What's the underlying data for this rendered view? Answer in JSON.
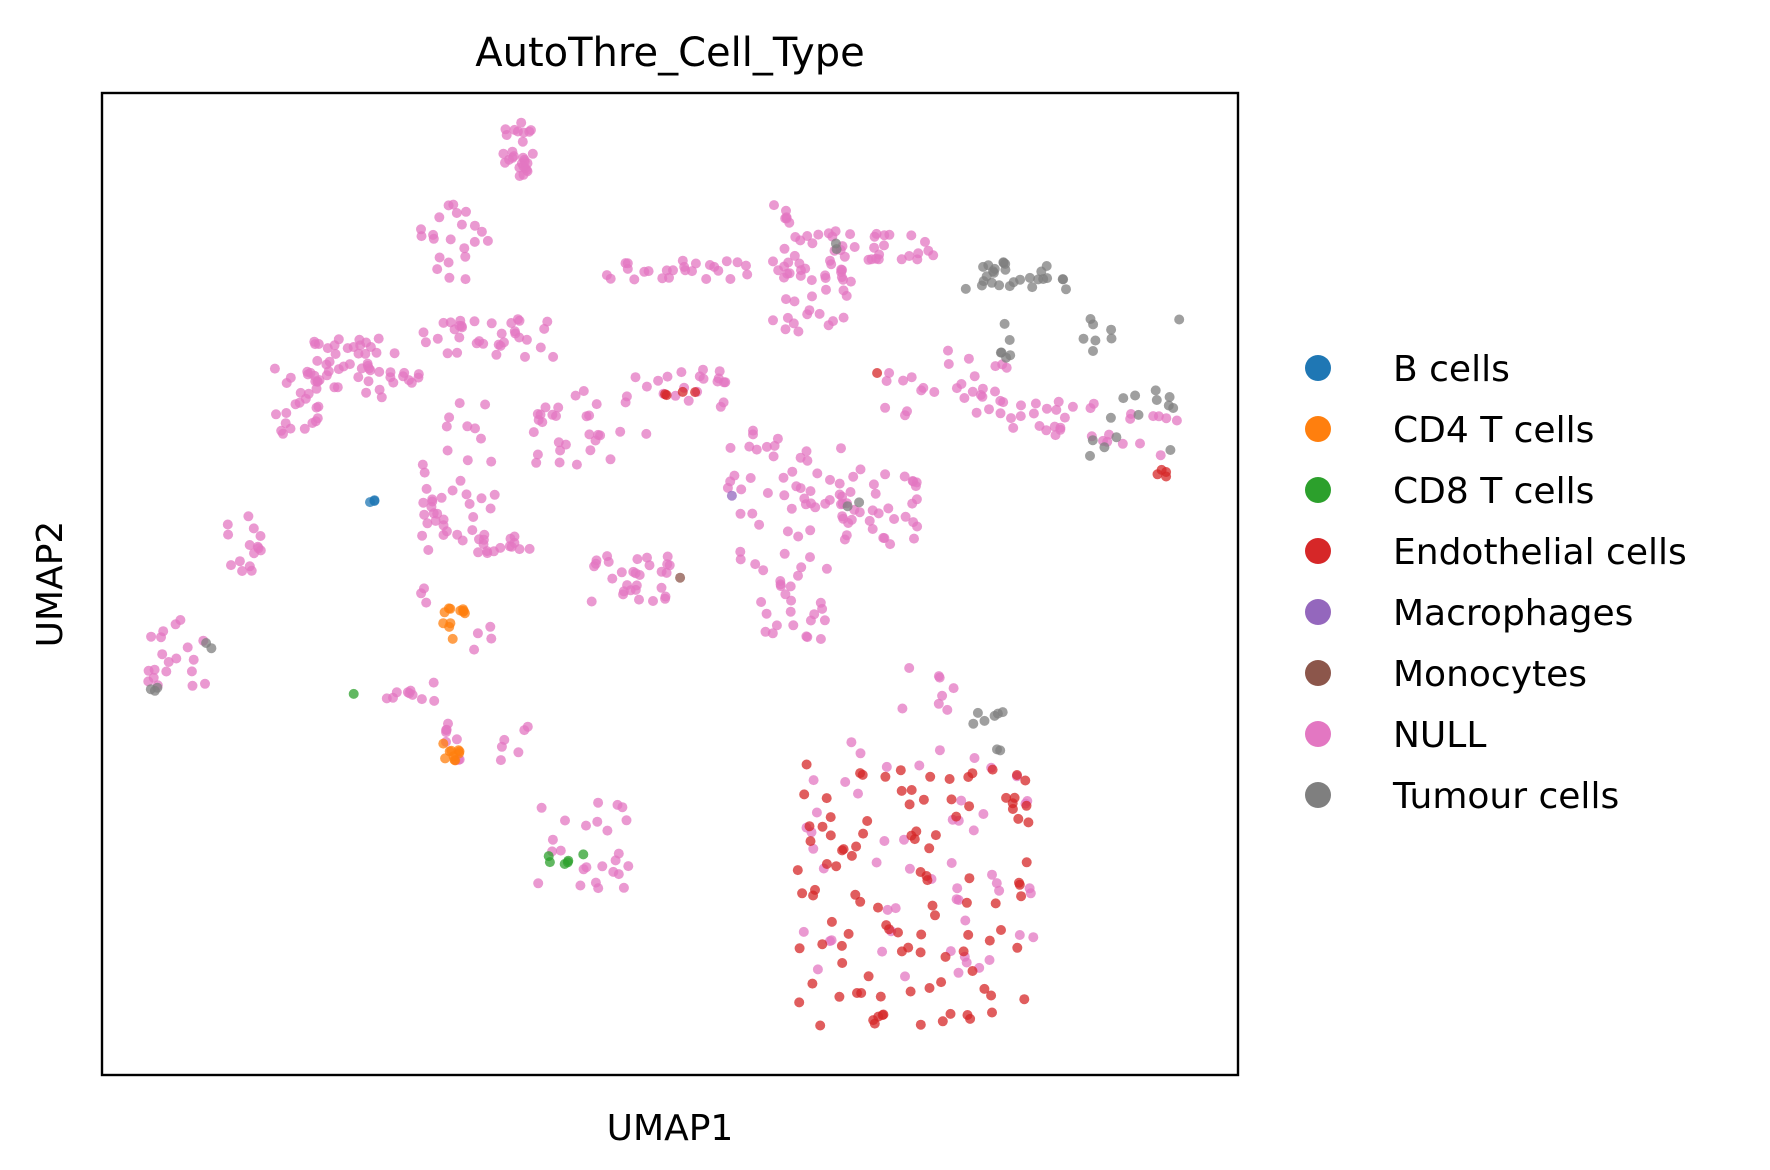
{
  "chart_data": {
    "type": "scatter",
    "title": "AutoThre_Cell_Type",
    "xlabel": "UMAP1",
    "ylabel": "UMAP2",
    "xlim": [
      0,
      100
    ],
    "ylim": [
      0,
      100
    ],
    "grid": false,
    "axis_ticks": false,
    "legend_position": "right",
    "point_alpha": 0.75,
    "categories": [
      {
        "name": "B cells",
        "color": "#1f77b4"
      },
      {
        "name": "CD4 T cells",
        "color": "#ff7f0e"
      },
      {
        "name": "CD8 T cells",
        "color": "#2ca02c"
      },
      {
        "name": "Endothelial cells",
        "color": "#d62728"
      },
      {
        "name": "Macrophages",
        "color": "#9467bd"
      },
      {
        "name": "Monocytes",
        "color": "#8c564b"
      },
      {
        "name": "NULL",
        "color": "#e377c2"
      },
      {
        "name": "Tumour cells",
        "color": "#7f7f7f"
      }
    ],
    "clusters": [
      {
        "category": "NULL",
        "n": 28,
        "x": [
          35,
          38
        ],
        "y": [
          91,
          97
        ]
      },
      {
        "category": "NULL",
        "n": 22,
        "x": [
          28,
          34
        ],
        "y": [
          81,
          89
        ]
      },
      {
        "category": "NULL",
        "n": 40,
        "x": [
          18,
          26
        ],
        "y": [
          70,
          75
        ]
      },
      {
        "category": "NULL",
        "n": 35,
        "x": [
          28,
          40
        ],
        "y": [
          73,
          77
        ]
      },
      {
        "category": "NULL",
        "n": 25,
        "x": [
          15,
          20
        ],
        "y": [
          65,
          72
        ]
      },
      {
        "category": "NULL",
        "n": 12,
        "x": [
          23,
          28
        ],
        "y": [
          69,
          72
        ]
      },
      {
        "category": "NULL",
        "n": 15,
        "x": [
          11,
          14
        ],
        "y": [
          51,
          57
        ]
      },
      {
        "category": "NULL",
        "n": 20,
        "x": [
          4,
          10
        ],
        "y": [
          39,
          47
        ]
      },
      {
        "category": "NULL",
        "n": 45,
        "x": [
          43,
          66
        ],
        "y": [
          81,
          83
        ]
      },
      {
        "category": "NULL",
        "n": 35,
        "x": [
          60,
          74
        ],
        "y": [
          83,
          86
        ]
      },
      {
        "category": "NULL",
        "n": 20,
        "x": [
          59,
          66
        ],
        "y": [
          75,
          81
        ]
      },
      {
        "category": "NULL",
        "n": 18,
        "x": [
          48,
          55
        ],
        "y": [
          68,
          72
        ]
      },
      {
        "category": "NULL",
        "n": 30,
        "x": [
          68,
          80
        ],
        "y": [
          67,
          74
        ]
      },
      {
        "category": "NULL",
        "n": 20,
        "x": [
          80,
          88
        ],
        "y": [
          65,
          69
        ]
      },
      {
        "category": "NULL",
        "n": 18,
        "x": [
          28,
          35
        ],
        "y": [
          42,
          64
        ]
      },
      {
        "category": "NULL",
        "n": 20,
        "x": [
          30,
          35
        ],
        "y": [
          55,
          70
        ]
      },
      {
        "category": "NULL",
        "n": 25,
        "x": [
          37,
          44
        ],
        "y": [
          62,
          70
        ]
      },
      {
        "category": "NULL",
        "n": 15,
        "x": [
          33,
          38
        ],
        "y": [
          53,
          55
        ]
      },
      {
        "category": "NULL",
        "n": 30,
        "x": [
          43,
          50
        ],
        "y": [
          48,
          53
        ]
      },
      {
        "category": "NULL",
        "n": 50,
        "x": [
          55,
          66
        ],
        "y": [
          52,
          66
        ]
      },
      {
        "category": "NULL",
        "n": 25,
        "x": [
          58,
          64
        ],
        "y": [
          44,
          52
        ]
      },
      {
        "category": "NULL",
        "n": 35,
        "x": [
          65,
          72
        ],
        "y": [
          54,
          62
        ]
      },
      {
        "category": "NULL",
        "n": 10,
        "x": [
          28,
          30
        ],
        "y": [
          56,
          60
        ]
      },
      {
        "category": "NULL",
        "n": 25,
        "x": [
          38,
          47
        ],
        "y": [
          19,
          28
        ]
      },
      {
        "category": "NULL",
        "n": 15,
        "x": [
          30,
          38
        ],
        "y": [
          32,
          36
        ]
      },
      {
        "category": "NULL",
        "n": 10,
        "x": [
          25,
          30
        ],
        "y": [
          38,
          40
        ]
      },
      {
        "category": "NULL",
        "n": 55,
        "x": [
          60,
          82
        ],
        "y": [
          10,
          34
        ]
      },
      {
        "category": "NULL",
        "n": 8,
        "x": [
          69,
          75
        ],
        "y": [
          36,
          42
        ]
      },
      {
        "category": "NULL",
        "n": 12,
        "x": [
          88,
          95
        ],
        "y": [
          63,
          68
        ]
      },
      {
        "category": "NULL",
        "n": 8,
        "x": [
          42,
          48
        ],
        "y": [
          62,
          72
        ]
      },
      {
        "category": "NULL",
        "n": 6,
        "x": [
          58,
          62
        ],
        "y": [
          86,
          89
        ]
      },
      {
        "category": "Tumour cells",
        "n": 28,
        "x": [
          76,
          85
        ],
        "y": [
          80,
          83
        ]
      },
      {
        "category": "Tumour cells",
        "n": 22,
        "x": [
          86,
          95
        ],
        "y": [
          63,
          79
        ]
      },
      {
        "category": "Tumour cells",
        "n": 6,
        "x": [
          79,
          80
        ],
        "y": [
          73,
          77
        ]
      },
      {
        "category": "Tumour cells",
        "n": 8,
        "x": [
          76,
          80
        ],
        "y": [
          33,
          37
        ]
      },
      {
        "category": "Tumour cells",
        "n": 3,
        "x": [
          4,
          5
        ],
        "y": [
          39,
          40
        ]
      },
      {
        "category": "Tumour cells",
        "n": 2,
        "x": [
          9,
          10
        ],
        "y": [
          43,
          44
        ]
      },
      {
        "category": "Tumour cells",
        "n": 2,
        "x": [
          65,
          67
        ],
        "y": [
          57,
          59
        ]
      },
      {
        "category": "Tumour cells",
        "n": 2,
        "x": [
          62,
          66
        ],
        "y": [
          84,
          85
        ]
      },
      {
        "category": "Endothelial cells",
        "n": 110,
        "x": [
          61,
          82
        ],
        "y": [
          5,
          32
        ]
      },
      {
        "category": "Endothelial cells",
        "n": 4,
        "x": [
          49,
          53
        ],
        "y": [
          69,
          70
        ]
      },
      {
        "category": "Endothelial cells",
        "n": 4,
        "x": [
          92,
          94
        ],
        "y": [
          60,
          62
        ]
      },
      {
        "category": "Endothelial cells",
        "n": 1,
        "x": [
          68,
          69
        ],
        "y": [
          71,
          72
        ]
      },
      {
        "category": "CD4 T cells",
        "n": 12,
        "x": [
          30,
          32
        ],
        "y": [
          44,
          48
        ]
      },
      {
        "category": "CD4 T cells",
        "n": 10,
        "x": [
          30,
          32
        ],
        "y": [
          32,
          34
        ]
      },
      {
        "category": "CD8 T cells",
        "n": 6,
        "x": [
          39,
          43
        ],
        "y": [
          21,
          23
        ]
      },
      {
        "category": "CD8 T cells",
        "n": 1,
        "x": [
          22,
          23
        ],
        "y": [
          38,
          39
        ]
      },
      {
        "category": "B cells",
        "n": 3,
        "x": [
          23,
          24
        ],
        "y": [
          58,
          60
        ]
      },
      {
        "category": "Macrophages",
        "n": 1,
        "x": [
          55,
          56
        ],
        "y": [
          58,
          59
        ]
      },
      {
        "category": "Monocytes",
        "n": 1,
        "x": [
          50,
          51
        ],
        "y": [
          50,
          51
        ]
      }
    ]
  }
}
